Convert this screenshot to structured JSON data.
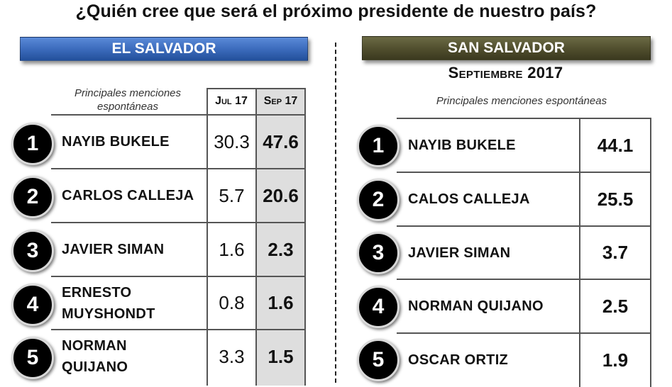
{
  "title": "¿Quién cree que será el próximo presidente de nuestro país?",
  "chart_data": [
    {
      "type": "table",
      "title": "EL SALVADOR",
      "note": "Principales menciones espontáneas",
      "columns": [
        "Jul 17",
        "Sep 17"
      ],
      "rows": [
        {
          "rank": "1",
          "name": "NAYIB BUKELE",
          "values": [
            30.3,
            47.6
          ]
        },
        {
          "rank": "2",
          "name": "CARLOS CALLEJA",
          "values": [
            5.7,
            20.6
          ]
        },
        {
          "rank": "3",
          "name": "JAVIER SIMAN",
          "values": [
            1.6,
            2.3
          ]
        },
        {
          "rank": "4",
          "name": "ERNESTO MUYSHONDT",
          "values": [
            0.8,
            1.6
          ]
        },
        {
          "rank": "5",
          "name": "NORMAN QUIJANO",
          "values": [
            3.3,
            1.5
          ]
        }
      ]
    },
    {
      "type": "table",
      "title": "SAN SALVADOR",
      "subtitle": "Septiembre 2017",
      "note": "Principales menciones espontáneas",
      "rows": [
        {
          "rank": "1",
          "name": "NAYIB BUKELE",
          "values": [
            44.1
          ]
        },
        {
          "rank": "2",
          "name": "CALOS CALLEJA",
          "values": [
            25.5
          ]
        },
        {
          "rank": "3",
          "name": "JAVIER SIMAN",
          "values": [
            3.7
          ]
        },
        {
          "rank": "4",
          "name": "NORMAN QUIJANO",
          "values": [
            2.5
          ]
        },
        {
          "rank": "5",
          "name": "OSCAR ORTIZ",
          "values": [
            1.9
          ]
        }
      ]
    }
  ]
}
